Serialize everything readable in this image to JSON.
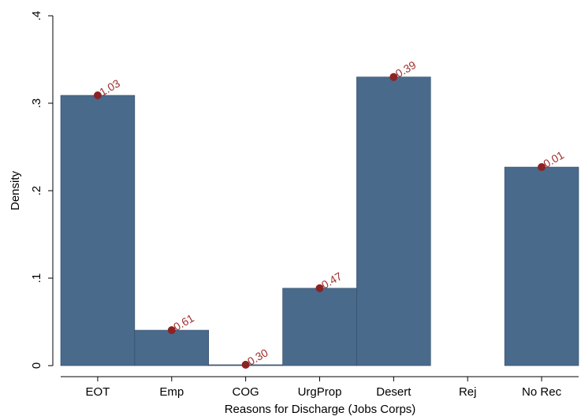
{
  "chart_data": {
    "type": "bar",
    "x_label": "Reasons for Discharge (Jobs Corps)",
    "y_label": "Density",
    "categories": [
      "EOT",
      "Emp",
      "COG",
      "UrgProp",
      "Desert",
      "Rej",
      "No Rec"
    ],
    "values": [
      0.309,
      0.0405,
      0.001,
      0.0885,
      0.33,
      null,
      0.227
    ],
    "point_labels": [
      "1.03",
      "0.61",
      "0.30",
      "0.47",
      "0.39",
      null,
      "0.01"
    ],
    "color": "#4a6a8c",
    "point_color": "#8b2323",
    "ylim": [
      0,
      0.4
    ],
    "yticks": [
      0,
      {
        "value": 0.1,
        "label": ".1"
      },
      {
        "value": 0.2,
        "label": ".2"
      },
      {
        "value": 0.3,
        "label": ".3"
      },
      {
        "value": 0.4,
        "label": ".4"
      }
    ],
    "grid": false
  }
}
